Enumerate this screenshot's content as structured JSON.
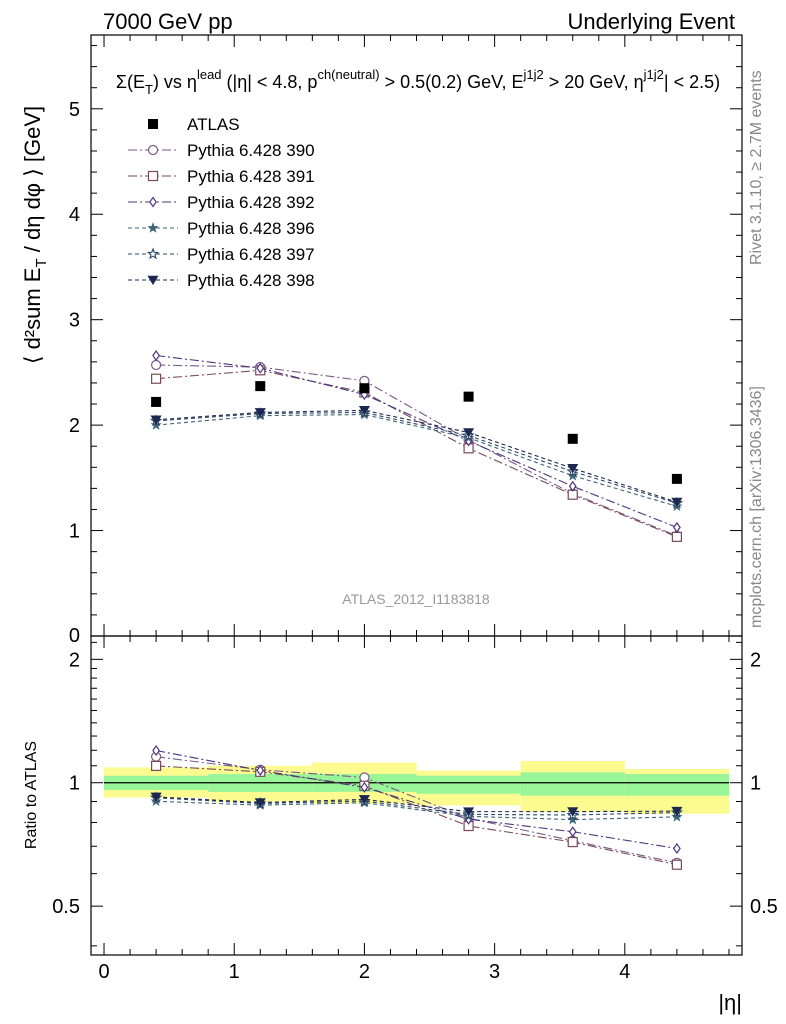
{
  "header": {
    "left": "7000 GeV pp",
    "right": "Underlying Event",
    "ref": "ATLAS_2012_I1183818",
    "side_top": "Rivet 3.1.10, ≥ 2.7M events",
    "side_bottom": "mcplots.cern.ch [arXiv:1306.3436]"
  },
  "chart_data": {
    "type": "scatter",
    "title": "Σ(E_T) vs η^lead (|η| < 4.8, p_T^ch(neutral) > 0.5(0.2) GeV, E_T^j1j2 > 20 GeV, η^j1j2 | < 2.5)",
    "xlabel": "|η|",
    "ylabel": "⟨ d²sum E_T / dη dφ ⟩ [GeV]",
    "ratio_ylabel": "Ratio to ATLAS",
    "xlim": [
      -0.1,
      4.9
    ],
    "ylim": [
      0,
      5.7
    ],
    "ratio_ylim": [
      0.38,
      2.28
    ],
    "x_ticks": [
      0,
      1,
      2,
      3,
      4
    ],
    "y_ticks": [
      1,
      2,
      3,
      4,
      5
    ],
    "ratio_y_ticks": [
      0.5,
      1,
      2
    ],
    "x": [
      0.4,
      1.2,
      2.0,
      2.8,
      3.6,
      4.4
    ],
    "legend_position": "top-left",
    "data": {
      "name": "ATLAS",
      "values": [
        2.22,
        2.37,
        2.35,
        2.27,
        1.87,
        1.49
      ],
      "color": "#000000"
    },
    "bands": {
      "x_edges": [
        0.0,
        0.8,
        1.6,
        2.4,
        3.2,
        4.0,
        4.8
      ],
      "stat_lo": [
        0.96,
        0.95,
        0.95,
        0.94,
        0.93,
        0.93
      ],
      "stat_hi": [
        1.04,
        1.05,
        1.05,
        1.04,
        1.06,
        1.05
      ],
      "tot_lo": [
        0.92,
        0.9,
        0.89,
        0.88,
        0.85,
        0.84
      ],
      "tot_hi": [
        1.09,
        1.1,
        1.12,
        1.07,
        1.13,
        1.08
      ],
      "stat_color": "#98f598",
      "tot_color": "#fbfb90"
    },
    "series": [
      {
        "name": "Pythia 6.428 390",
        "marker": "circle-open",
        "color": "#7a5a84",
        "dash": "9,3,2,3",
        "values": [
          2.57,
          2.55,
          2.42,
          1.86,
          1.35,
          0.95
        ]
      },
      {
        "name": "Pythia 6.428 391",
        "marker": "square-open",
        "color": "#7a4a5a",
        "dash": "9,3,2,3",
        "values": [
          2.44,
          2.52,
          2.31,
          1.78,
          1.34,
          0.94
        ]
      },
      {
        "name": "Pythia 6.428 392",
        "marker": "diamond-open",
        "color": "#4a3680",
        "dash": "9,3,2,3",
        "values": [
          2.66,
          2.54,
          2.29,
          1.85,
          1.42,
          1.03
        ]
      },
      {
        "name": "Pythia 6.428 396",
        "marker": "star-filled",
        "color": "#3e6478",
        "dash": "4,3",
        "values": [
          2.0,
          2.09,
          2.1,
          1.88,
          1.52,
          1.23
        ]
      },
      {
        "name": "Pythia 6.428 397",
        "marker": "star-open",
        "color": "#2e4a66",
        "dash": "4,3",
        "values": [
          2.04,
          2.11,
          2.12,
          1.9,
          1.56,
          1.26
        ]
      },
      {
        "name": "Pythia 6.428 398",
        "marker": "triangle-down",
        "color": "#1c2850",
        "dash": "4,3",
        "values": [
          2.05,
          2.12,
          2.14,
          1.93,
          1.59,
          1.27
        ]
      }
    ]
  }
}
